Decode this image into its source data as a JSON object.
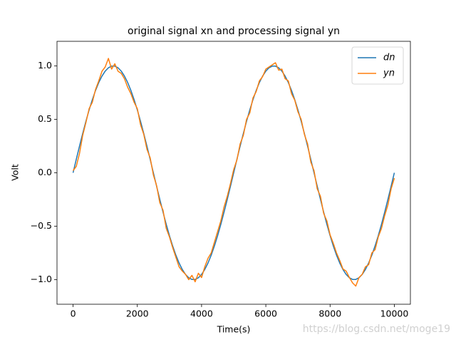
{
  "chart_data": {
    "type": "line",
    "title": "original signal xn and processing signal yn",
    "xlabel": "Time(s)",
    "ylabel": "Volt",
    "watermark": "https://blog.csdn.net/moge19",
    "legend": "upper right",
    "xlim": [
      -500,
      10500
    ],
    "ylim": [
      -1.23,
      1.23
    ],
    "xticks": [
      0,
      2000,
      4000,
      6000,
      8000,
      10000
    ],
    "yticks": [
      {
        "value": -1,
        "label": "−1.0"
      },
      {
        "value": -0.5,
        "label": "−0.5"
      },
      {
        "value": 0,
        "label": "0.0"
      },
      {
        "value": 0.5,
        "label": "0.5"
      },
      {
        "value": 1,
        "label": "1.0"
      }
    ],
    "x": [
      0,
      100,
      200,
      300,
      400,
      500,
      600,
      700,
      800,
      900,
      1000,
      1100,
      1200,
      1300,
      1400,
      1500,
      1600,
      1700,
      1800,
      1900,
      2000,
      2100,
      2200,
      2300,
      2400,
      2500,
      2600,
      2700,
      2800,
      2900,
      3000,
      3100,
      3200,
      3300,
      3400,
      3500,
      3600,
      3700,
      3800,
      3900,
      4000,
      4100,
      4200,
      4300,
      4400,
      4500,
      4600,
      4700,
      4800,
      4900,
      5000,
      5100,
      5200,
      5300,
      5400,
      5500,
      5600,
      5700,
      5800,
      5900,
      6000,
      6100,
      6200,
      6300,
      6400,
      6500,
      6600,
      6700,
      6800,
      6900,
      7000,
      7100,
      7200,
      7300,
      7400,
      7500,
      7600,
      7700,
      7800,
      7900,
      8000,
      8100,
      8200,
      8300,
      8400,
      8500,
      8600,
      8700,
      8800,
      8900,
      9000,
      9100,
      9200,
      9300,
      9400,
      9500,
      9600,
      9700,
      9800,
      9900,
      10000
    ],
    "series": [
      {
        "name": "dn",
        "color": "#1f77b4",
        "values": [
          0,
          0.1253,
          0.2487,
          0.3681,
          0.4818,
          0.5878,
          0.6845,
          0.7705,
          0.8443,
          0.9048,
          0.9511,
          0.9823,
          0.998,
          0.998,
          0.9823,
          0.9511,
          0.9048,
          0.8443,
          0.7705,
          0.6845,
          0.5878,
          0.4818,
          0.3681,
          0.2487,
          0.1253,
          0,
          -0.1253,
          -0.2487,
          -0.3681,
          -0.4818,
          -0.5878,
          -0.6845,
          -0.7705,
          -0.8443,
          -0.9048,
          -0.9511,
          -0.9823,
          -0.998,
          -0.998,
          -0.9823,
          -0.9511,
          -0.9048,
          -0.8443,
          -0.7705,
          -0.6845,
          -0.5878,
          -0.4818,
          -0.3681,
          -0.2487,
          -0.1253,
          0,
          0.1253,
          0.2487,
          0.3681,
          0.4818,
          0.5878,
          0.6845,
          0.7705,
          0.8443,
          0.9048,
          0.9511,
          0.9823,
          0.998,
          0.998,
          0.9823,
          0.9511,
          0.9048,
          0.8443,
          0.7705,
          0.6845,
          0.5878,
          0.4818,
          0.3681,
          0.2487,
          0.1253,
          0,
          -0.1253,
          -0.2487,
          -0.3681,
          -0.4818,
          -0.5878,
          -0.6845,
          -0.7705,
          -0.8443,
          -0.9048,
          -0.9511,
          -0.9823,
          -0.998,
          -0.998,
          -0.9823,
          -0.9511,
          -0.9048,
          -0.8443,
          -0.7705,
          -0.6845,
          -0.5878,
          -0.4818,
          -0.3681,
          -0.2487,
          -0.1253,
          0
        ]
      },
      {
        "name": "yn",
        "color": "#ff7f0e",
        "values": [
          0.02,
          0.06,
          0.18,
          0.35,
          0.47,
          0.6,
          0.66,
          0.78,
          0.86,
          0.95,
          0.99,
          1.07,
          0.97,
          1.02,
          0.95,
          0.93,
          0.88,
          0.8,
          0.74,
          0.66,
          0.6,
          0.45,
          0.36,
          0.22,
          0.14,
          -0.02,
          -0.12,
          -0.28,
          -0.35,
          -0.52,
          -0.6,
          -0.7,
          -0.79,
          -0.88,
          -0.92,
          -0.95,
          -1.0,
          -0.96,
          -1.02,
          -0.94,
          -0.98,
          -0.88,
          -0.8,
          -0.75,
          -0.65,
          -0.55,
          -0.45,
          -0.32,
          -0.22,
          -0.1,
          0.03,
          0.12,
          0.27,
          0.35,
          0.5,
          0.56,
          0.7,
          0.76,
          0.86,
          0.9,
          0.97,
          0.99,
          1.01,
          1.03,
          0.96,
          0.97,
          0.88,
          0.86,
          0.74,
          0.68,
          0.57,
          0.5,
          0.36,
          0.27,
          0.1,
          0.02,
          -0.15,
          -0.22,
          -0.38,
          -0.45,
          -0.58,
          -0.66,
          -0.75,
          -0.82,
          -0.9,
          -0.92,
          -0.98,
          -1.03,
          -1.06,
          -0.98,
          -0.95,
          -0.88,
          -0.86,
          -0.75,
          -0.72,
          -0.6,
          -0.52,
          -0.4,
          -0.3,
          -0.15,
          -0.05
        ]
      }
    ]
  }
}
